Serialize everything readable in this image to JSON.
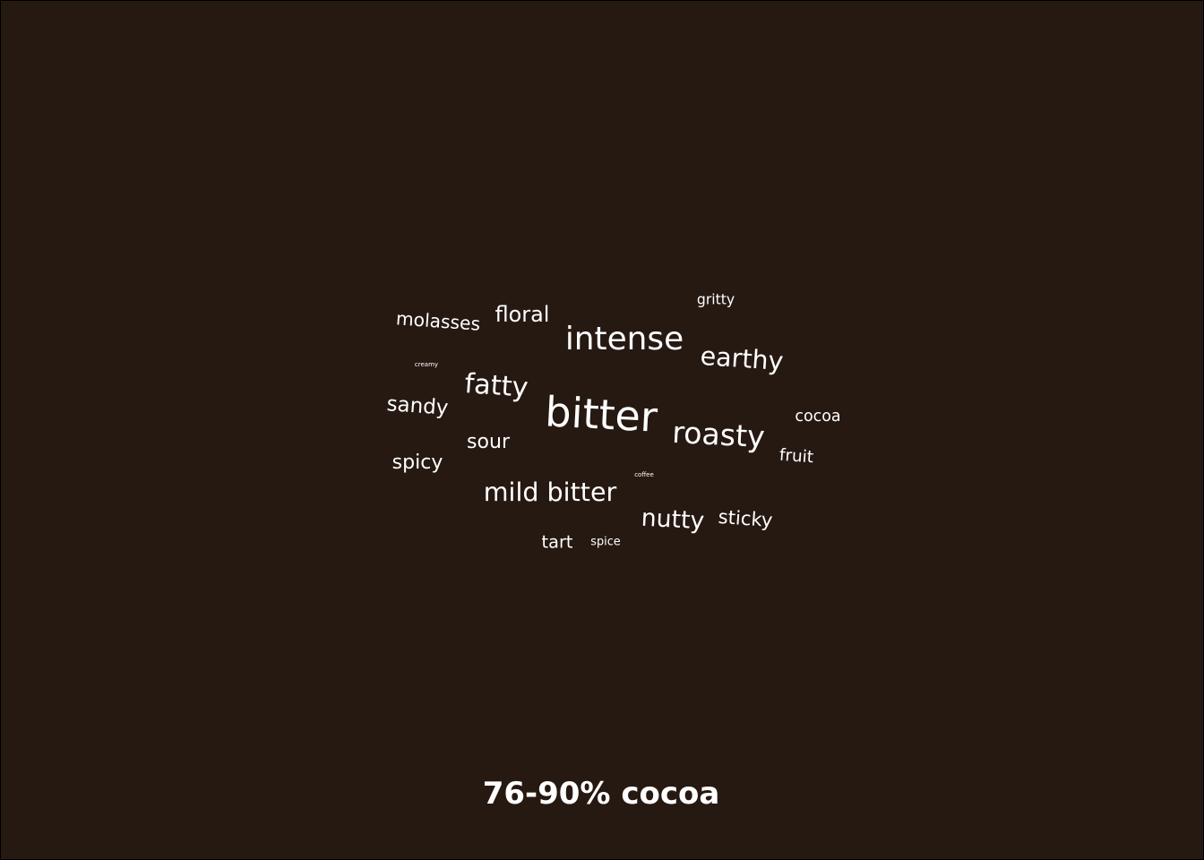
{
  "caption": "76-90% cocoa",
  "colors": {
    "background": "#261912",
    "border": "#000000",
    "text": "#ffffff"
  },
  "chart_data": {
    "type": "wordcloud",
    "title": "76-90% cocoa",
    "words": [
      {
        "text": "bitter",
        "weight": 100
      },
      {
        "text": "intense",
        "weight": 78
      },
      {
        "text": "roasty",
        "weight": 72
      },
      {
        "text": "mild bitter",
        "weight": 62
      },
      {
        "text": "fatty",
        "weight": 66
      },
      {
        "text": "earthy",
        "weight": 62
      },
      {
        "text": "nutty",
        "weight": 58
      },
      {
        "text": "floral",
        "weight": 52
      },
      {
        "text": "sandy",
        "weight": 50
      },
      {
        "text": "sour",
        "weight": 48
      },
      {
        "text": "spicy",
        "weight": 48
      },
      {
        "text": "sticky",
        "weight": 46
      },
      {
        "text": "molasses",
        "weight": 44
      },
      {
        "text": "tart",
        "weight": 42
      },
      {
        "text": "fruit",
        "weight": 40
      },
      {
        "text": "cocoa",
        "weight": 38
      },
      {
        "text": "gritty",
        "weight": 34
      },
      {
        "text": "spice",
        "weight": 28
      },
      {
        "text": "creamy",
        "weight": 12
      },
      {
        "text": "coffee",
        "weight": 12
      }
    ]
  }
}
